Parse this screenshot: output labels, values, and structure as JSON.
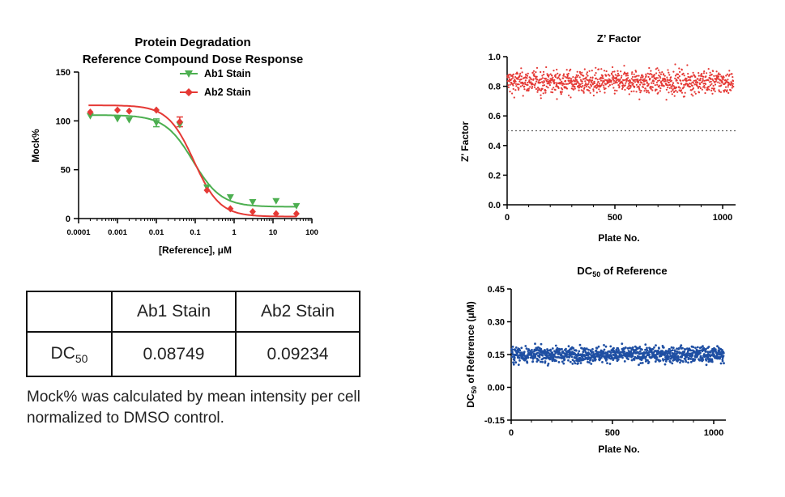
{
  "chart_data": [
    {
      "type": "line",
      "title": "Protein Degradation",
      "subtitle": "Reference Compound Dose Response",
      "xlabel": "[Reference], μM",
      "ylabel": "Mock%",
      "xscale": "log",
      "xlim": [
        0.0001,
        100
      ],
      "ylim": [
        0,
        150
      ],
      "xticks": [
        "0.0001",
        "0.001",
        "0.01",
        "0.1",
        "1",
        "10",
        "100"
      ],
      "yticks": [
        "0",
        "50",
        "100",
        "150"
      ],
      "legend_position": "top-right",
      "series": [
        {
          "name": "Ab1 Stain",
          "color": "#4caf50",
          "marker": "triangle-down",
          "x": [
            0.0002,
            0.001,
            0.002,
            0.01,
            0.04,
            0.2,
            0.8,
            3,
            12,
            40
          ],
          "y": [
            105,
            102,
            101,
            98,
            96,
            32,
            22,
            17,
            18,
            13
          ],
          "fit": {
            "top": 106,
            "bottom": 12,
            "ec50": 0.08749,
            "hill": 1.2
          }
        },
        {
          "name": "Ab2 Stain",
          "color": "#e53935",
          "marker": "diamond",
          "x": [
            0.0002,
            0.001,
            0.002,
            0.01,
            0.04,
            0.2,
            0.8,
            3,
            12,
            40
          ],
          "y": [
            109,
            111,
            110,
            111,
            99,
            29,
            10,
            7,
            5,
            5
          ],
          "fit": {
            "top": 116,
            "bottom": 2,
            "ec50": 0.09234,
            "hill": 1.3
          }
        }
      ],
      "error_bars": [
        {
          "series": 0,
          "x": 0.01,
          "y": 98,
          "err": 4
        },
        {
          "series": 1,
          "x": 0.04,
          "y": 99,
          "err": 5
        }
      ]
    },
    {
      "type": "scatter",
      "title": "Z’ Factor",
      "xlabel": "Plate No.",
      "ylabel": "Z’ Factor",
      "xlim": [
        0,
        1060
      ],
      "ylim": [
        0,
        1.0
      ],
      "xticks": [
        "0",
        "500",
        "1000"
      ],
      "yticks": [
        "0.0",
        "0.2",
        "0.4",
        "0.6",
        "0.8",
        "1.0"
      ],
      "threshold_line": 0.5,
      "series": [
        {
          "color": "#e53935",
          "n_points": 1050,
          "x_range": [
            1,
            1050
          ],
          "mean": 0.83,
          "spread": 0.04
        }
      ]
    },
    {
      "type": "scatter",
      "title_main": "DC",
      "title_sub": "50",
      "title_rest": " of Reference",
      "xlabel": "Plate No.",
      "ylabel_main": "DC",
      "ylabel_sub": "50",
      "ylabel_rest": " of Reference (μM)",
      "xlim": [
        0,
        1060
      ],
      "ylim": [
        -0.15,
        0.45
      ],
      "xticks": [
        "0",
        "500",
        "1000"
      ],
      "yticks": [
        "-0.15",
        "0.00",
        "0.15",
        "0.30",
        "0.45"
      ],
      "series": [
        {
          "color": "#1f4fa3",
          "n_points": 1050,
          "x_range": [
            1,
            1050
          ],
          "mean": 0.15,
          "spread": 0.018
        }
      ]
    }
  ],
  "table": {
    "headers": [
      "",
      "Ab1 Stain",
      "Ab2 Stain"
    ],
    "row_label_main": "DC",
    "row_label_sub": "50",
    "values": [
      "0.08749",
      "0.09234"
    ]
  },
  "note": "Mock% was calculated by mean intensity per cell normalized to DMSO control."
}
